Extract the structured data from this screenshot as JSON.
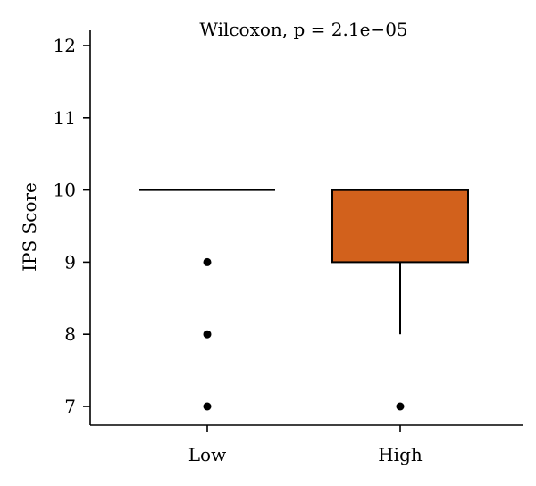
{
  "chart_data": {
    "type": "box",
    "title": "",
    "annotation": "Wilcoxon, p = 2.1e−05",
    "xlabel": "",
    "ylabel": "IPS Score",
    "ylim": [
      6.8,
      12.2
    ],
    "yticks": [
      7,
      8,
      9,
      10,
      11,
      12
    ],
    "categories": [
      "Low",
      "High"
    ],
    "boxes": [
      {
        "category": "Low",
        "q1": 10,
        "median": 10,
        "q3": 10,
        "whisker_low": 10,
        "whisker_high": 10,
        "outliers": [
          9,
          8,
          7
        ],
        "fill": "#ffffff"
      },
      {
        "category": "High",
        "q1": 9,
        "median": 10,
        "q3": 10,
        "whisker_low": 8,
        "whisker_high": 10,
        "outliers": [
          7
        ],
        "fill": "#d2611c"
      }
    ],
    "grid": false,
    "legend": "none"
  }
}
